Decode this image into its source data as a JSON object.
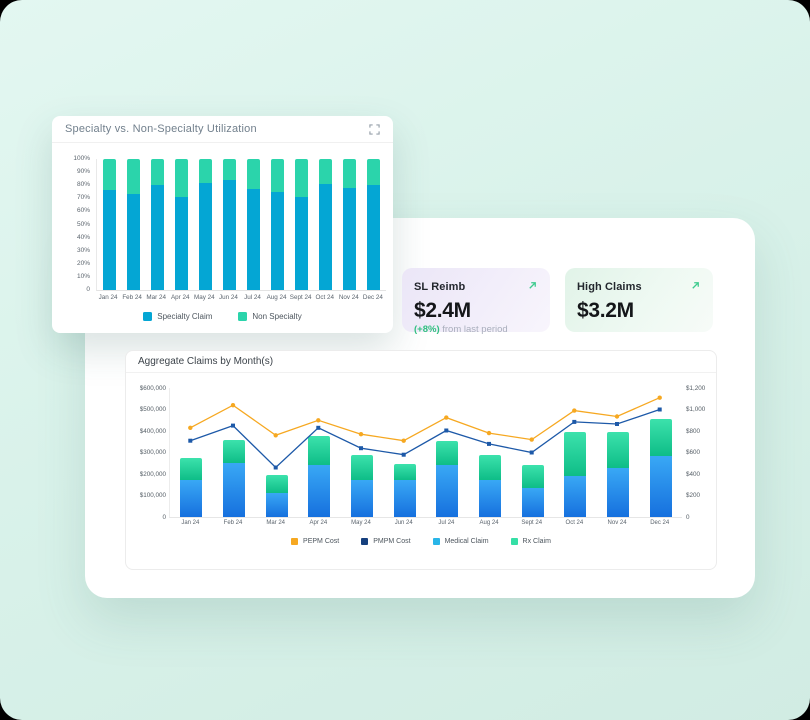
{
  "page": {
    "background": "#d9f1ea"
  },
  "utilization_card": {
    "title": "Specialty vs. Non-Specialty Utilization",
    "expand_icon": "fullscreen-corners-icon"
  },
  "stat_cards": [
    {
      "label": "SL Reimb",
      "value": "$2.4M",
      "delta": "(+8%)",
      "delta_suffix": " from last period",
      "arrow_icon": "arrow-up-right-icon",
      "arrow_color": "#3ecb8e"
    },
    {
      "label": "High Claims",
      "value": "$3.2M",
      "arrow_icon": "arrow-up-right-icon",
      "arrow_color": "#3ecb8e"
    }
  ],
  "aggregate_card": {
    "title": "Aggregate Claims by Month(s)"
  },
  "chart_data": [
    {
      "type": "bar",
      "stacked": true,
      "title": "Specialty vs. Non-Specialty Utilization",
      "categories": [
        "Jan 24",
        "Feb 24",
        "Mar 24",
        "Apr 24",
        "May 24",
        "Jun 24",
        "Jul 24",
        "Aug 24",
        "Sept 24",
        "Oct 24",
        "Nov 24",
        "Dec 24"
      ],
      "series": [
        {
          "name": "Specialty Claim",
          "color": "#04a6d4",
          "values": [
            76,
            73,
            80,
            71,
            82,
            84,
            77,
            75,
            71,
            81,
            78,
            80
          ]
        },
        {
          "name": "Non Specialty",
          "color": "#2bd4ab",
          "values": [
            24,
            27,
            20,
            29,
            18,
            16,
            23,
            25,
            29,
            19,
            22,
            20
          ]
        }
      ],
      "ylabel_ticks": [
        "100%",
        "90%",
        "80%",
        "70%",
        "60%",
        "50%",
        "40%",
        "30%",
        "20%",
        "10%",
        "0"
      ],
      "ylim": [
        0,
        100
      ],
      "grid": false,
      "legend_position": "bottom"
    },
    {
      "type": "bar+line",
      "title": "Aggregate Claims by Month(s)",
      "categories": [
        "Jan 24",
        "Feb 24",
        "Mar 24",
        "Apr 24",
        "May 24",
        "Jun 24",
        "Jul 24",
        "Aug 24",
        "Sept 24",
        "Oct 24",
        "Nov 24",
        "Dec 24"
      ],
      "bar_series": [
        {
          "name": "Medical Claim",
          "axis": "left",
          "color_top": "#39a8f5",
          "color_bottom": "#1670de",
          "legend_color": "#29b5e8",
          "values": [
            170000,
            250000,
            110000,
            240000,
            170000,
            170000,
            240000,
            170000,
            135000,
            190000,
            230000,
            285000
          ]
        },
        {
          "name": "Rx Claim",
          "axis": "left",
          "color_top": "#3ce2ac",
          "color_bottom": "#0ebd87",
          "legend_color": "#35dfa6",
          "values": [
            105000,
            110000,
            85000,
            135000,
            120000,
            75000,
            115000,
            120000,
            105000,
            205000,
            165000,
            170000
          ]
        }
      ],
      "line_series": [
        {
          "name": "PEPM Cost",
          "axis": "right",
          "color": "#f6a821",
          "legend_color": "#f6a821",
          "marker": "circle",
          "values": [
            830,
            1040,
            760,
            900,
            770,
            710,
            925,
            780,
            720,
            990,
            935,
            1110
          ]
        },
        {
          "name": "PMPM Cost",
          "axis": "right",
          "color": "#1d59a8",
          "legend_color": "#16407e",
          "marker": "square",
          "values": [
            710,
            850,
            460,
            830,
            640,
            580,
            805,
            680,
            600,
            885,
            865,
            1000
          ]
        }
      ],
      "left_axis": {
        "ticks": [
          "$600,000",
          "$500,000",
          "$400,000",
          "$300,000",
          "$200,000",
          "$100,000",
          "0"
        ],
        "max": 600000
      },
      "right_axis": {
        "ticks": [
          "$1,200",
          "$1,000",
          "$800",
          "$600",
          "$400",
          "$200",
          "0"
        ],
        "max": 1200
      },
      "legend": [
        "PEPM Cost",
        "PMPM Cost",
        "Medical Claim",
        "Rx Claim"
      ],
      "grid": false,
      "legend_position": "bottom"
    }
  ]
}
